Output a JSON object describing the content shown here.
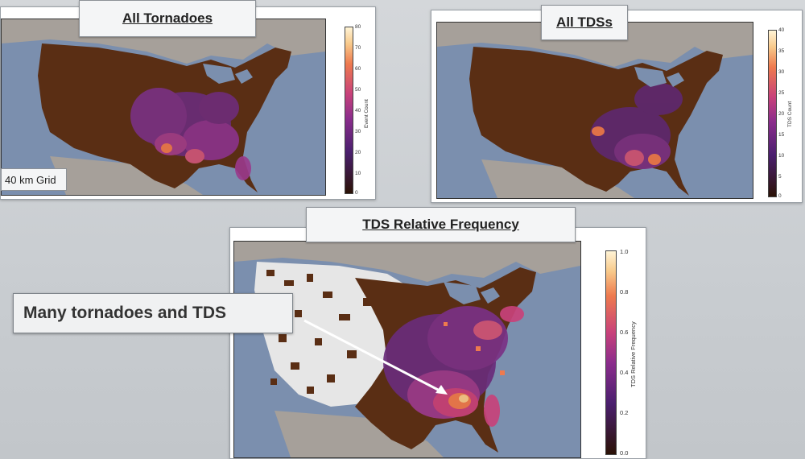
{
  "panels": {
    "all_tornadoes": {
      "title": "All Tornadoes",
      "grid_label": "40 km Grid",
      "colorbar_label": "Event Count",
      "ticks": [
        "80",
        "70",
        "60",
        "50",
        "40",
        "30",
        "20",
        "10",
        "0"
      ]
    },
    "all_tds": {
      "title": "All TDSs",
      "colorbar_label": "TDS Count",
      "ticks": [
        "40",
        "35",
        "30",
        "25",
        "20",
        "15",
        "10",
        "5",
        "0"
      ]
    },
    "relative_frequency": {
      "title": "TDS Relative Frequency",
      "colorbar_label": "TDS Relative Frequency",
      "ticks": [
        "1.0",
        "0.8",
        "0.6",
        "0.4",
        "0.2",
        "0.0"
      ]
    }
  },
  "callout": {
    "text": "Many tornadoes and TDS"
  },
  "colors": {
    "land": "#5a2e14",
    "ocean": "#7b8fae",
    "foreign_land": "#a6a09a",
    "no_data": "#e6e6e6",
    "arrow": "#ffffff"
  }
}
